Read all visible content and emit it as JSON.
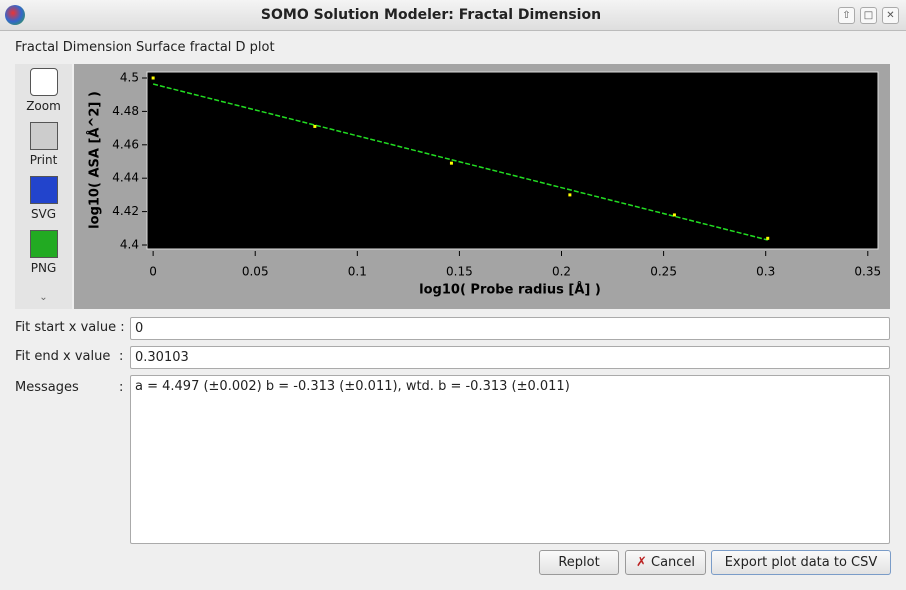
{
  "window": {
    "title": "SOMO Solution Modeler: Fractal Dimension"
  },
  "heading": "Fractal Dimension Surface fractal D plot",
  "toolbar": [
    "Zoom",
    "Print",
    "SVG",
    "PNG"
  ],
  "chart_data": {
    "type": "scatter",
    "x_label": "log10( Probe radius [Å] )",
    "y_label": "log10( ASA [Å^2] )",
    "x": [
      0,
      0.0792,
      0.1461,
      0.2041,
      0.2553,
      0.301
    ],
    "values": [
      4.5,
      4.471,
      4.449,
      4.43,
      4.418,
      4.404
    ],
    "color": "#ffff00",
    "fit": {
      "x": [
        0,
        0.30103
      ],
      "values": [
        4.4964,
        4.403
      ],
      "color": "#22dd22"
    },
    "xlim": [
      -0.003,
      0.355
    ],
    "ylim": [
      4.3976,
      4.5036
    ],
    "xticks": [
      0,
      0.05,
      0.1,
      0.15,
      0.2,
      0.25,
      0.3,
      0.35
    ],
    "yticks": [
      4.4,
      4.42,
      4.44,
      4.46,
      4.48,
      4.5
    ],
    "background": "#000000"
  },
  "form": {
    "fit_start": {
      "label": "Fit start x value :",
      "value": "0"
    },
    "fit_end": {
      "label": "Fit end x value",
      "colon": ":",
      "value": "0.30103"
    },
    "messages": {
      "label": "Messages",
      "colon": ":",
      "text": "a = 4.497 (±0.002)  b = -0.313 (±0.011), wtd. b = -0.313 (±0.011)"
    }
  },
  "buttons": [
    "Replot",
    "Cancel",
    "Export plot data to CSV"
  ]
}
